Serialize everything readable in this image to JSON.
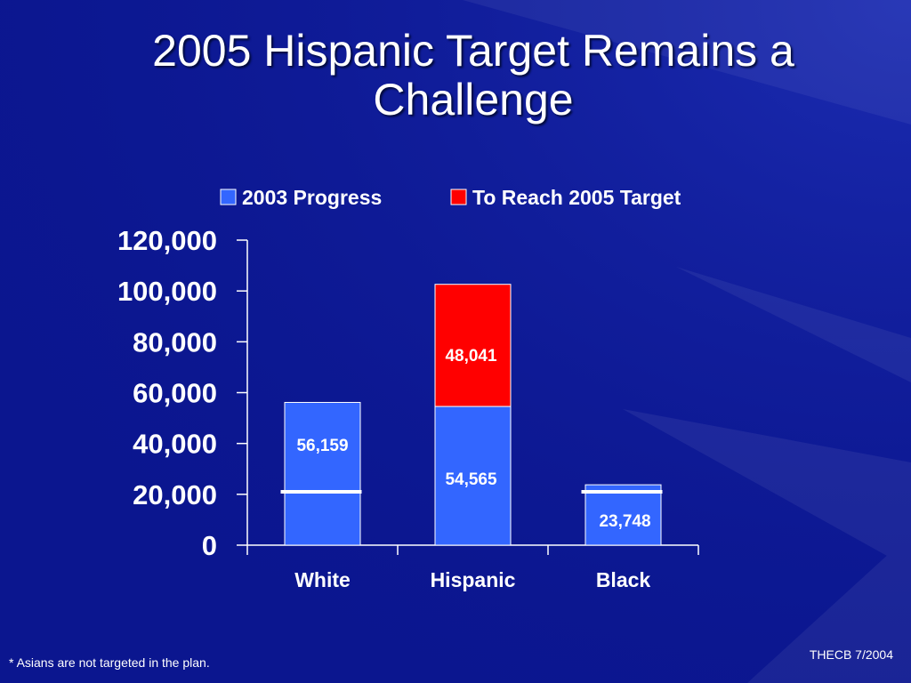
{
  "slide": {
    "title_line1": "2005 Hispanic Target Remains a",
    "title_line2": "Challenge",
    "footnote": "* Asians are not targeted in the plan.",
    "source": "THECB 7/2004"
  },
  "colors": {
    "background": "#0b168f",
    "progress": "#3366ff",
    "target": "#ff0000",
    "text": "#ffffff"
  },
  "chart_data": {
    "type": "bar",
    "stacked": true,
    "categories": [
      "White",
      "Hispanic",
      "Black"
    ],
    "series": [
      {
        "name": "2003 Progress",
        "color": "#3366ff",
        "values": [
          56159,
          54565,
          23748
        ],
        "labels": [
          "56,159",
          "54,565",
          "23,748"
        ]
      },
      {
        "name": "To Reach 2005 Target",
        "color": "#ff0000",
        "values": [
          0,
          48041,
          0
        ],
        "labels": [
          "",
          "48,041",
          ""
        ]
      }
    ],
    "target_markers": [
      21000,
      null,
      21000
    ],
    "ylim": [
      0,
      120000
    ],
    "yticks": [
      0,
      20000,
      40000,
      60000,
      80000,
      100000,
      120000
    ],
    "ytick_labels": [
      "0",
      "20,000",
      "40,000",
      "60,000",
      "80,000",
      "100,000",
      "120,000"
    ],
    "legend_position": "top",
    "grid": false
  }
}
